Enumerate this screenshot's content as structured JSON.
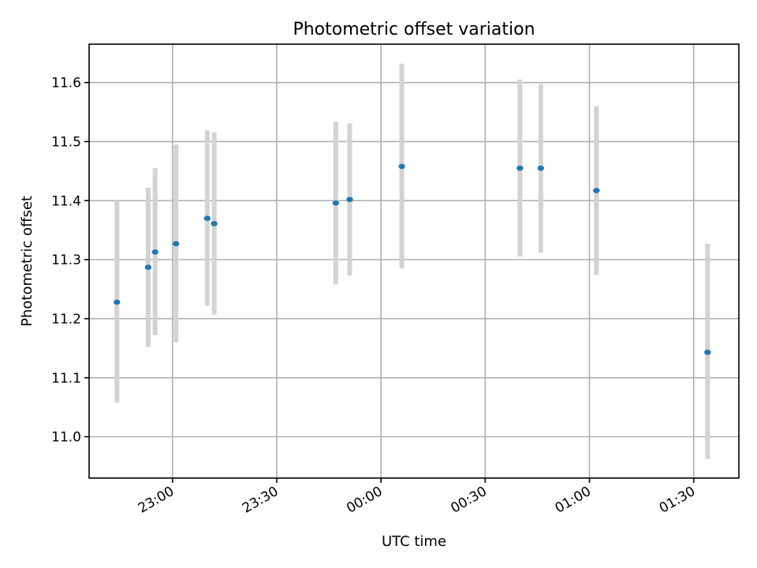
{
  "chart_data": {
    "type": "scatter",
    "title": "Photometric offset variation",
    "xlabel": "UTC time",
    "ylabel": "Photometric offset",
    "x_axis": {
      "kind": "time",
      "ticks": [
        "23:00",
        "23:30",
        "00:00",
        "00:30",
        "01:00",
        "01:30"
      ],
      "range": [
        "22:36",
        "01:43"
      ]
    },
    "ylim": [
      10.93,
      11.665
    ],
    "yticks": [
      11.0,
      11.1,
      11.2,
      11.3,
      11.4,
      11.5,
      11.6
    ],
    "grid": true,
    "colors": {
      "points": "#1f77b4",
      "error_bars": "#d3d3d3"
    },
    "points": [
      {
        "time": "22:44",
        "y": 11.228,
        "yerr_low": 11.058,
        "yerr_high": 11.4
      },
      {
        "time": "22:53",
        "y": 11.287,
        "yerr_low": 11.152,
        "yerr_high": 11.422
      },
      {
        "time": "22:55",
        "y": 11.313,
        "yerr_low": 11.172,
        "yerr_high": 11.455
      },
      {
        "time": "23:01",
        "y": 11.327,
        "yerr_low": 11.16,
        "yerr_high": 11.495
      },
      {
        "time": "23:10",
        "y": 11.37,
        "yerr_low": 11.222,
        "yerr_high": 11.519
      },
      {
        "time": "23:12",
        "y": 11.361,
        "yerr_low": 11.207,
        "yerr_high": 11.516
      },
      {
        "time": "23:47",
        "y": 11.396,
        "yerr_low": 11.258,
        "yerr_high": 11.534
      },
      {
        "time": "23:51",
        "y": 11.402,
        "yerr_low": 11.273,
        "yerr_high": 11.531
      },
      {
        "time": "00:06",
        "y": 11.458,
        "yerr_low": 11.285,
        "yerr_high": 11.632
      },
      {
        "time": "00:40",
        "y": 11.455,
        "yerr_low": 11.305,
        "yerr_high": 11.605
      },
      {
        "time": "00:46",
        "y": 11.455,
        "yerr_low": 11.312,
        "yerr_high": 11.597
      },
      {
        "time": "01:02",
        "y": 11.417,
        "yerr_low": 11.274,
        "yerr_high": 11.56
      },
      {
        "time": "01:34",
        "y": 11.143,
        "yerr_low": 10.962,
        "yerr_high": 11.327
      }
    ]
  }
}
